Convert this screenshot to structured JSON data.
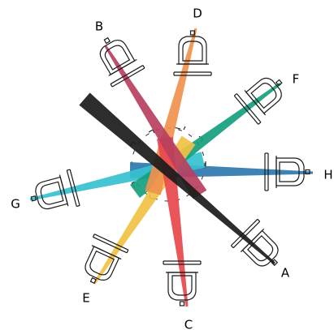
{
  "diagram": {
    "units": [
      {
        "label": "A",
        "color": "#1b1b1b"
      },
      {
        "label": "B",
        "color": "#b8405f"
      },
      {
        "label": "C",
        "color": "#e8474c"
      },
      {
        "label": "D",
        "color": "#f0914e"
      },
      {
        "label": "E",
        "color": "#f1c144"
      },
      {
        "label": "F",
        "color": "#16a07e"
      },
      {
        "label": "G",
        "color": "#36c1cf"
      },
      {
        "label": "H",
        "color": "#2e78ad"
      }
    ]
  }
}
